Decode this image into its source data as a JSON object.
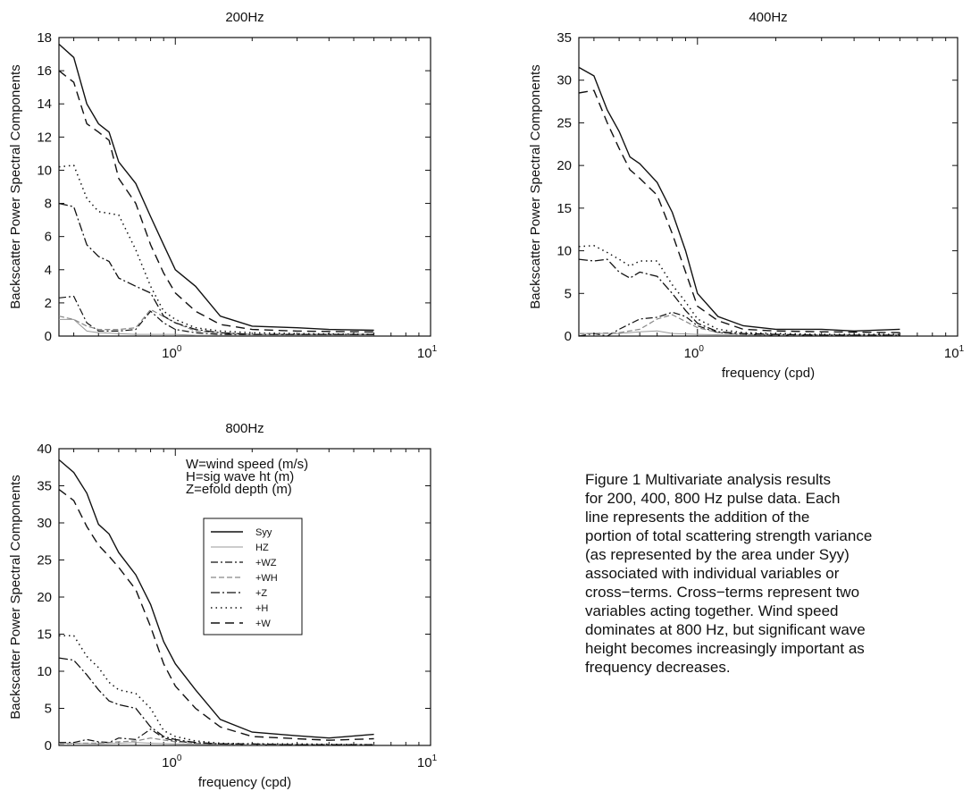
{
  "caption": {
    "lines": [
      "Figure 1 Multivariate analysis results",
      "for 200, 400, 800 Hz pulse data. Each",
      "line represents the addition of the",
      "portion of total scattering strength variance",
      "(as represented by the area under Syy)",
      "associated with individual variables or",
      "cross−terms. Cross−terms represent two",
      "variables acting together. Wind speed",
      "dominates at 800 Hz, but significant wave",
      "height becomes increasingly important as",
      "frequency decreases."
    ]
  },
  "annotations": {
    "lines": [
      "W=wind speed (m/s)",
      "H=sig wave ht (m)",
      "Z=efold depth (m)"
    ]
  },
  "legend": {
    "entries": [
      "Syy",
      "HZ",
      "+WZ",
      "+WH",
      "+Z",
      "+H",
      "+W"
    ]
  },
  "chart_data": [
    {
      "type": "line",
      "title": "200Hz",
      "ylabel": "Backscatter Power Spectral Components",
      "xlabel": "",
      "xscale": "log",
      "xlim": [
        0.35,
        10
      ],
      "ylim": [
        0,
        18
      ],
      "yticks": [
        0,
        2,
        4,
        6,
        8,
        10,
        12,
        14,
        16,
        18
      ],
      "xticks": [
        "10^0",
        "10^1"
      ],
      "series": [
        {
          "name": "Syy",
          "x": [
            0.35,
            0.4,
            0.45,
            0.5,
            0.55,
            0.6,
            0.7,
            0.8,
            0.9,
            1.0,
            1.2,
            1.5,
            2.0,
            3.0,
            4.0,
            6.0
          ],
          "y": [
            17.6,
            16.8,
            14.0,
            12.8,
            12.3,
            10.5,
            9.2,
            7.2,
            5.5,
            4.0,
            3.0,
            1.2,
            0.6,
            0.5,
            0.4,
            0.35
          ]
        },
        {
          "name": "HZ",
          "x": [
            0.35,
            0.4,
            0.45,
            0.5,
            0.6,
            0.7,
            0.8,
            1.0,
            1.2,
            1.5,
            2.0,
            3.0,
            6.0
          ],
          "y": [
            1.0,
            1.0,
            0.3,
            0.2,
            0.15,
            0.1,
            0.1,
            0.1,
            0.05,
            0.05,
            0.05,
            0.05,
            0.05
          ]
        },
        {
          "name": "+WZ",
          "x": [
            0.35,
            0.4,
            0.45,
            0.5,
            0.6,
            0.7,
            0.8,
            0.9,
            1.0,
            1.2,
            1.5,
            2.0,
            3.0,
            6.0
          ],
          "y": [
            2.3,
            2.4,
            0.8,
            0.3,
            0.3,
            0.4,
            1.5,
            0.8,
            0.4,
            0.2,
            0.1,
            0.1,
            0.1,
            0.1
          ]
        },
        {
          "name": "+WH",
          "x": [
            0.35,
            0.4,
            0.45,
            0.5,
            0.6,
            0.7,
            0.8,
            1.0,
            1.2,
            1.5,
            2.0,
            3.0,
            6.0
          ],
          "y": [
            1.2,
            1.0,
            0.6,
            0.4,
            0.4,
            0.5,
            1.6,
            0.8,
            0.3,
            0.2,
            0.1,
            0.1,
            0.1
          ]
        },
        {
          "name": "+Z",
          "x": [
            0.35,
            0.4,
            0.45,
            0.5,
            0.55,
            0.6,
            0.7,
            0.8,
            0.9,
            1.0,
            1.2,
            1.5,
            2.0,
            3.0,
            6.0
          ],
          "y": [
            8.0,
            7.8,
            5.5,
            4.8,
            4.5,
            3.5,
            3.0,
            2.6,
            1.2,
            0.8,
            0.4,
            0.2,
            0.1,
            0.1,
            0.1
          ]
        },
        {
          "name": "+H",
          "x": [
            0.35,
            0.4,
            0.45,
            0.5,
            0.6,
            0.7,
            0.8,
            0.9,
            1.0,
            1.2,
            1.5,
            2.0,
            3.0,
            6.0
          ],
          "y": [
            10.2,
            10.3,
            8.3,
            7.5,
            7.3,
            5.2,
            3.0,
            1.5,
            1.0,
            0.5,
            0.3,
            0.2,
            0.15,
            0.1
          ]
        },
        {
          "name": "+W",
          "x": [
            0.35,
            0.4,
            0.45,
            0.5,
            0.55,
            0.6,
            0.7,
            0.8,
            0.9,
            1.0,
            1.2,
            1.5,
            2.0,
            3.0,
            6.0
          ],
          "y": [
            16.0,
            15.3,
            12.8,
            12.3,
            11.8,
            9.5,
            8.0,
            5.5,
            3.8,
            2.6,
            1.5,
            0.7,
            0.4,
            0.3,
            0.25
          ]
        }
      ]
    },
    {
      "type": "line",
      "title": "400Hz",
      "ylabel": "Backscatter Power Spectral Components",
      "xlabel": "frequency (cpd)",
      "xscale": "log",
      "xlim": [
        0.35,
        10
      ],
      "ylim": [
        0,
        35
      ],
      "yticks": [
        0,
        5,
        10,
        15,
        20,
        25,
        30,
        35
      ],
      "xticks": [
        "10^0",
        "10^1"
      ],
      "series": [
        {
          "name": "Syy",
          "x": [
            0.35,
            0.4,
            0.45,
            0.5,
            0.55,
            0.6,
            0.7,
            0.8,
            0.9,
            1.0,
            1.2,
            1.5,
            2.0,
            3.0,
            4.0,
            6.0
          ],
          "y": [
            31.5,
            30.5,
            26.5,
            24.0,
            21.0,
            20.2,
            18.0,
            14.5,
            10.0,
            5.0,
            2.3,
            1.2,
            0.8,
            0.8,
            0.6,
            0.8
          ]
        },
        {
          "name": "HZ",
          "x": [
            0.35,
            0.4,
            0.5,
            0.6,
            0.7,
            0.8,
            1.0,
            1.5,
            2.0,
            3.0,
            6.0
          ],
          "y": [
            0.3,
            0.3,
            0.3,
            0.5,
            0.6,
            0.3,
            0.2,
            0.1,
            0.1,
            0.1,
            0.1
          ]
        },
        {
          "name": "+WZ",
          "x": [
            0.35,
            0.4,
            0.45,
            0.5,
            0.6,
            0.7,
            0.8,
            0.9,
            1.0,
            1.2,
            1.5,
            2.0,
            3.0,
            6.0
          ],
          "y": [
            0.0,
            0.3,
            0.0,
            0.8,
            2.0,
            2.2,
            2.8,
            2.3,
            1.2,
            0.4,
            0.2,
            0.1,
            0.1,
            0.1
          ]
        },
        {
          "name": "+WH",
          "x": [
            0.35,
            0.4,
            0.5,
            0.6,
            0.7,
            0.8,
            1.0,
            1.2,
            1.5,
            2.0,
            3.0,
            6.0
          ],
          "y": [
            0.3,
            0.3,
            0.4,
            0.8,
            2.0,
            2.5,
            1.0,
            0.4,
            0.2,
            0.1,
            0.1,
            0.1
          ]
        },
        {
          "name": "+Z",
          "x": [
            0.35,
            0.4,
            0.45,
            0.5,
            0.55,
            0.6,
            0.7,
            0.8,
            0.9,
            1.0,
            1.2,
            1.5,
            2.0,
            3.0,
            6.0
          ],
          "y": [
            9.0,
            8.8,
            9.0,
            7.5,
            6.8,
            7.5,
            7.0,
            5.0,
            3.0,
            1.5,
            0.5,
            0.3,
            0.2,
            0.1,
            0.1
          ]
        },
        {
          "name": "+H",
          "x": [
            0.35,
            0.4,
            0.45,
            0.5,
            0.55,
            0.6,
            0.7,
            0.8,
            0.9,
            1.0,
            1.2,
            1.5,
            2.0,
            3.0,
            6.0
          ],
          "y": [
            10.5,
            10.6,
            9.8,
            9.0,
            8.2,
            8.8,
            8.8,
            6.0,
            4.0,
            2.0,
            0.8,
            0.4,
            0.3,
            0.2,
            0.2
          ]
        },
        {
          "name": "+W",
          "x": [
            0.35,
            0.4,
            0.45,
            0.5,
            0.55,
            0.6,
            0.7,
            0.8,
            0.9,
            1.0,
            1.2,
            1.5,
            2.0,
            3.0,
            6.0
          ],
          "y": [
            28.5,
            28.8,
            25.0,
            22.0,
            19.5,
            18.5,
            16.5,
            12.0,
            7.5,
            3.5,
            1.8,
            0.8,
            0.6,
            0.5,
            0.4
          ]
        }
      ]
    },
    {
      "type": "line",
      "title": "800Hz",
      "ylabel": "Backscatter Power Spectral Components",
      "xlabel": "frequency (cpd)",
      "xscale": "log",
      "xlim": [
        0.35,
        10
      ],
      "ylim": [
        0,
        40
      ],
      "yticks": [
        0,
        5,
        10,
        15,
        20,
        25,
        30,
        35,
        40
      ],
      "xticks": [
        "10^0",
        "10^1"
      ],
      "series": [
        {
          "name": "Syy",
          "x": [
            0.35,
            0.4,
            0.45,
            0.5,
            0.55,
            0.6,
            0.7,
            0.8,
            0.9,
            1.0,
            1.2,
            1.5,
            2.0,
            3.0,
            4.0,
            6.0
          ],
          "y": [
            38.5,
            36.8,
            34.0,
            29.8,
            28.5,
            26.0,
            23.0,
            19.0,
            14.0,
            11.0,
            7.5,
            3.5,
            1.8,
            1.3,
            1.0,
            1.5
          ]
        },
        {
          "name": "HZ",
          "x": [
            0.35,
            0.4,
            0.5,
            0.6,
            0.7,
            0.8,
            1.0,
            1.5,
            2.0,
            3.0,
            6.0
          ],
          "y": [
            0.3,
            0.3,
            0.2,
            0.3,
            0.4,
            0.3,
            0.2,
            0.1,
            0.1,
            0.1,
            0.1
          ]
        },
        {
          "name": "+WZ",
          "x": [
            0.35,
            0.4,
            0.45,
            0.5,
            0.55,
            0.6,
            0.7,
            0.8,
            0.9,
            1.0,
            1.2,
            1.5,
            2.0,
            3.0,
            6.0
          ],
          "y": [
            0.4,
            0.4,
            0.8,
            0.5,
            0.4,
            1.0,
            0.8,
            2.2,
            1.0,
            0.6,
            0.3,
            0.2,
            0.1,
            0.1,
            0.1
          ]
        },
        {
          "name": "+WH",
          "x": [
            0.35,
            0.4,
            0.5,
            0.6,
            0.7,
            0.8,
            1.0,
            1.2,
            1.5,
            2.0,
            3.0,
            6.0
          ],
          "y": [
            0.2,
            0.3,
            0.3,
            0.5,
            0.6,
            1.0,
            0.5,
            0.3,
            0.2,
            0.1,
            0.1,
            0.1
          ]
        },
        {
          "name": "+Z",
          "x": [
            0.35,
            0.4,
            0.45,
            0.5,
            0.55,
            0.6,
            0.7,
            0.8,
            0.9,
            1.0,
            1.2,
            1.5,
            2.0,
            3.0,
            6.0
          ],
          "y": [
            11.8,
            11.5,
            9.5,
            7.5,
            6.0,
            5.5,
            5.0,
            2.5,
            1.2,
            0.8,
            0.4,
            0.2,
            0.2,
            0.1,
            0.1
          ]
        },
        {
          "name": "+H",
          "x": [
            0.35,
            0.4,
            0.45,
            0.5,
            0.55,
            0.6,
            0.7,
            0.8,
            0.9,
            1.0,
            1.2,
            1.5,
            2.0,
            3.0,
            6.0
          ],
          "y": [
            14.8,
            14.8,
            12.0,
            10.5,
            8.5,
            7.5,
            7.0,
            5.0,
            2.0,
            1.2,
            0.6,
            0.3,
            0.2,
            0.2,
            0.1
          ]
        },
        {
          "name": "+W",
          "x": [
            0.35,
            0.4,
            0.45,
            0.5,
            0.55,
            0.6,
            0.7,
            0.8,
            0.9,
            1.0,
            1.2,
            1.5,
            2.0,
            3.0,
            4.0,
            6.0
          ],
          "y": [
            34.5,
            33.0,
            29.5,
            27.0,
            25.5,
            24.0,
            21.0,
            16.0,
            11.0,
            8.0,
            5.0,
            2.5,
            1.2,
            0.9,
            0.7,
            0.9
          ]
        }
      ]
    }
  ]
}
